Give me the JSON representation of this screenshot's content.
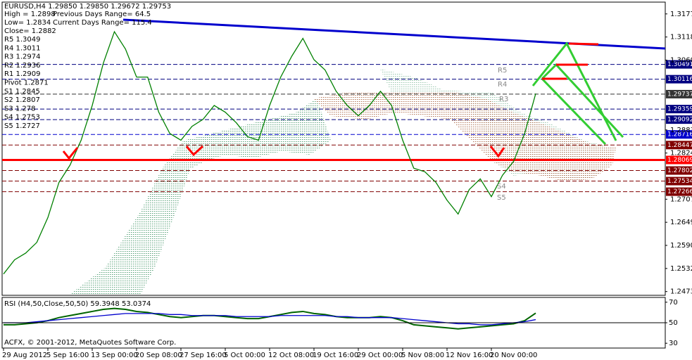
{
  "chart_data": [
    {
      "type": "line",
      "title": "EURUSD,H4  1.29850 1.29850 1.29672 1.29753",
      "info": [
        "High = 1.2898",
        "Previous Days Range= 64.5",
        "Low= 1.2834",
        "Current Days Range= 115.4",
        "Close= 1.2882"
      ],
      "pivots": [
        "R5 1.3049",
        "R4 1.3011",
        "R3 1.2974",
        "R2 1.2936",
        "R1 1.2909",
        "Pivot 1.2871",
        "S1 1.2845",
        "S2 1.2807",
        "S3 1.278",
        "S4 1.2753",
        "S5 1.2727"
      ],
      "marker_labels": [
        "R5",
        "R4",
        "R3",
        "S4",
        "S5"
      ],
      "copyright": "ACFX, © 2001-2012, MetaQuotes Software Corp.",
      "categories": [
        "29 Aug 2012",
        null,
        null,
        null,
        "5 Sep 16:00",
        null,
        null,
        null,
        "13 Sep 00:00",
        null,
        null,
        null,
        "20 Sep 08:00",
        null,
        null,
        null,
        "27 Sep 16:00",
        null,
        null,
        null,
        "5 Oct 00:00",
        null,
        null,
        null,
        "12 Oct 08:00",
        null,
        null,
        null,
        "19 Oct 16:00",
        null,
        null,
        null,
        "29 Oct 00:00",
        null,
        null,
        null,
        "5 Nov 08:00",
        null,
        null,
        null,
        "12 Nov 16:00",
        null,
        null,
        null,
        "20 Nov 00:00",
        null,
        null,
        null,
        null,
        null,
        null,
        null,
        null,
        null,
        null,
        null,
        null,
        null,
        null,
        null
      ],
      "series": [
        {
          "color": "#008000",
          "values": [
            1.2518,
            1.2554,
            1.2571,
            1.2598,
            1.2661,
            1.275,
            1.2794,
            1.2857,
            1.2945,
            1.3052,
            1.3132,
            1.3088,
            1.3017,
            1.3017,
            1.2928,
            1.2874,
            1.2857,
            1.2892,
            1.291,
            1.2945,
            1.2928,
            1.2901,
            1.2866,
            1.2857,
            1.2945,
            1.3017,
            1.307,
            1.3115,
            1.3061,
            1.3035,
            1.2981,
            1.2945,
            1.2919,
            1.2945,
            1.2981,
            1.2945,
            1.2857,
            1.2786,
            1.2777,
            1.275,
            1.2705,
            1.267,
            1.2732,
            1.2759,
            1.2714,
            1.2768,
            1.2803,
            1.2874,
            1.29753,
            null,
            null,
            null,
            null,
            null,
            null,
            null,
            null,
            null,
            null,
            null
          ]
        }
      ],
      "levels": [
        {
          "value": 1.30491,
          "color": "#000080"
        },
        {
          "value": 1.30116,
          "color": "#000080"
        },
        {
          "value": 1.29737,
          "color": "#333333"
        },
        {
          "value": 1.29359,
          "color": "#000080"
        },
        {
          "value": 1.29092,
          "color": "#000080"
        },
        {
          "value": 1.28716,
          "color": "#0000cd"
        },
        {
          "value": 1.28447,
          "color": "#800000"
        },
        {
          "value": 1.28069,
          "color": "#ff0000"
        },
        {
          "value": 1.27802,
          "color": "#800000"
        },
        {
          "value": 1.27534,
          "color": "#800000"
        },
        {
          "value": 1.27266,
          "color": "#800000"
        }
      ],
      "ylim": [
        1.2464,
        1.3198
      ],
      "yticks": [
        {
          "value": 1.3177,
          "label": "1.31770"
        },
        1.31185,
        {
          "value": 1.306,
          "label": "1.30600"
        },
        {
          "value": 1.2883,
          "label": "1.28830"
        },
        1.28245,
        1.27075,
        {
          "value": 1.2649,
          "label": "1.26490"
        },
        1.25905,
        {
          "value": 1.2532,
          "label": "1.25320"
        },
        1.24735
      ]
    },
    {
      "type": "line",
      "title": "RSI (H4,50,Close,50,50) 59.3948 53.0374",
      "series": [
        {
          "color": "#006400",
          "values": [
            48,
            48,
            49,
            50,
            52,
            55,
            57,
            59,
            61,
            63,
            64,
            63,
            61,
            60,
            58,
            56,
            55,
            56,
            57,
            57,
            56,
            55,
            54,
            54,
            56,
            58,
            60,
            61,
            59,
            58,
            56,
            55,
            55,
            55,
            56,
            55,
            52,
            48,
            47,
            46,
            45,
            44,
            45,
            46,
            47,
            48,
            49,
            52,
            59.3948,
            null,
            null,
            null,
            null,
            null,
            null,
            null,
            null,
            null,
            null,
            null
          ]
        },
        {
          "color": "#0000cd",
          "values": [
            50,
            50,
            50,
            51,
            52,
            53,
            54,
            55,
            56,
            57,
            58,
            59,
            59,
            59,
            59,
            58,
            58,
            57,
            57,
            57,
            57,
            56,
            56,
            56,
            56,
            57,
            57,
            57,
            57,
            57,
            56,
            56,
            55,
            55,
            55,
            55,
            54,
            53,
            52,
            51,
            50,
            49,
            49,
            48,
            48,
            49,
            50,
            51,
            53.0374,
            null,
            null,
            null,
            null,
            null,
            null,
            null,
            null,
            null,
            null,
            null
          ]
        }
      ],
      "level": 50,
      "ylim": [
        26.7,
        73.3
      ],
      "yticks": [
        30,
        50,
        70
      ]
    }
  ]
}
